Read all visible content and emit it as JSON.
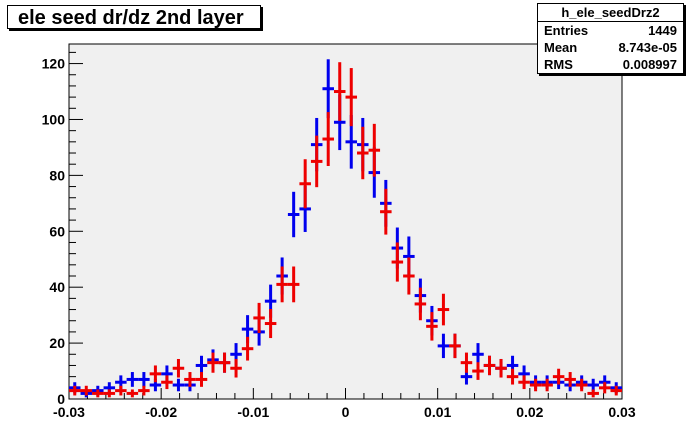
{
  "title": "ele seed dr/dz 2nd layer",
  "stats": {
    "name": "h_ele_seedDrz2",
    "rows": [
      {
        "label": "Entries",
        "value": "1449"
      },
      {
        "label": "Mean",
        "value": "8.743e-05"
      },
      {
        "label": "RMS",
        "value": "0.008997"
      }
    ]
  },
  "chart_data": {
    "type": "scatter",
    "title": "ele seed dr/dz 2nd layer",
    "xlabel": "",
    "ylabel": "",
    "xlim": [
      -0.03,
      0.03
    ],
    "ylim": [
      0,
      127
    ],
    "grid": false,
    "x_ticks": [
      -0.03,
      -0.02,
      -0.01,
      0,
      0.01,
      0.02,
      0.03
    ],
    "x_tick_labels": [
      "-0.03",
      "-0.02",
      "-0.01",
      "0",
      "0.01",
      "0.02",
      "0.03"
    ],
    "y_ticks": [
      0,
      20,
      40,
      60,
      80,
      100,
      120
    ],
    "y_tick_labels": [
      "0",
      "20",
      "40",
      "60",
      "80",
      "100",
      "120"
    ],
    "bin_width": 0.00125,
    "x": [
      -0.029375,
      -0.028125,
      -0.026875,
      -0.025625,
      -0.024375,
      -0.023125,
      -0.021875,
      -0.020625,
      -0.019375,
      -0.018125,
      -0.016875,
      -0.015625,
      -0.014375,
      -0.013125,
      -0.011875,
      -0.010625,
      -0.009375,
      -0.008125,
      -0.006875,
      -0.005625,
      -0.004375,
      -0.003125,
      -0.001875,
      -0.000625,
      0.000625,
      0.001875,
      0.003125,
      0.004375,
      0.005625,
      0.006875,
      0.008125,
      0.009375,
      0.010625,
      0.011875,
      0.013125,
      0.014375,
      0.015625,
      0.016875,
      0.018125,
      0.019375,
      0.020625,
      0.021875,
      0.023125,
      0.024375,
      0.025625,
      0.026875,
      0.028125,
      0.029375
    ],
    "series": [
      {
        "color": "#0000ee",
        "values": [
          4,
          2,
          3,
          4,
          6,
          7,
          7,
          5,
          9,
          5,
          5,
          12,
          14,
          13,
          16,
          25,
          24,
          35,
          44,
          66,
          68,
          91,
          111,
          99,
          92,
          91,
          81,
          70,
          54,
          51,
          37,
          28,
          19,
          19,
          8,
          16,
          12,
          11,
          12,
          9,
          6,
          6,
          6,
          5,
          6,
          5,
          6,
          4
        ]
      },
      {
        "color": "#ee0000",
        "values": [
          3,
          3,
          2,
          2,
          3,
          2,
          3,
          9,
          6,
          11,
          7,
          7,
          13,
          13,
          11,
          18,
          29,
          27,
          41,
          41,
          77,
          85,
          93,
          110,
          108,
          88,
          89,
          67,
          49,
          44,
          34,
          26,
          32,
          19,
          13,
          10,
          12,
          11,
          8,
          6,
          5,
          5,
          8,
          7,
          5,
          2,
          4,
          3
        ]
      }
    ]
  }
}
